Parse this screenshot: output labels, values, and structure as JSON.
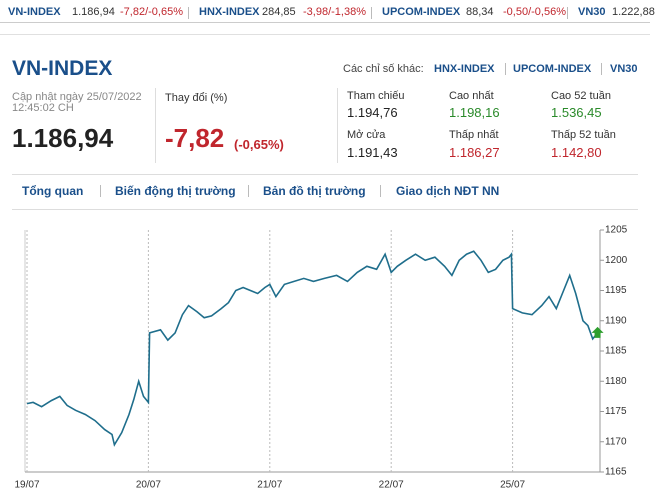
{
  "ticker": [
    {
      "name": "VN-INDEX",
      "price": "1.186,94",
      "change": "-7,82/-0,65%"
    },
    {
      "name": "HNX-INDEX",
      "price": "284,85",
      "change": "-3,98/-1,38%"
    },
    {
      "name": "UPCOM-INDEX",
      "price": "88,34",
      "change": "-0,50/-0,56%"
    },
    {
      "name": "VN30",
      "price": "1.222,88"
    }
  ],
  "header": {
    "title": "VN-INDEX",
    "other_label": "Các chỉ số khác:",
    "other_links": [
      "HNX-INDEX",
      "UPCOM-INDEX",
      "VN30"
    ],
    "updated": "Cập nhật ngày 25/07/2022",
    "time": "12:45:02 CH",
    "price": "1.186,94",
    "change_label": "Thay đổi (%)",
    "change": "-7,82",
    "change_pct": "(-0,65%)"
  },
  "stats": [
    {
      "label": "Tham chiếu",
      "value": "1.194,76"
    },
    {
      "label": "Cao nhất",
      "value": "1.198,16"
    },
    {
      "label": "Cao 52 tuần",
      "value": "1.536,45"
    },
    {
      "label": "Mở cửa",
      "value": "1.191,43"
    },
    {
      "label": "Thấp nhất",
      "value": "1.186,27"
    },
    {
      "label": "Thấp 52 tuần",
      "value": "1.142,80"
    }
  ],
  "tabs": [
    "Tổng quan",
    "Biến động thị trường",
    "Bản đồ thị trường",
    "Giao dịch NĐT NN"
  ],
  "chart": {
    "type": "line",
    "color": "#1f6e8c",
    "x": [
      0,
      0.05,
      0.12,
      0.2,
      0.27,
      0.33,
      0.4,
      0.48,
      0.56,
      0.64,
      0.7,
      0.72,
      0.78,
      0.84,
      0.88,
      0.92,
      0.96,
      1.0,
      1.01,
      1.1,
      1.16,
      1.22,
      1.28,
      1.33,
      1.4,
      1.46,
      1.52,
      1.6,
      1.66,
      1.72,
      1.78,
      1.84,
      1.9,
      1.96,
      2.0,
      2.05,
      2.12,
      2.2,
      2.28,
      2.36,
      2.45,
      2.55,
      2.64,
      2.72,
      2.8,
      2.88,
      2.95,
      3.0,
      3.05,
      3.12,
      3.2,
      3.28,
      3.36,
      3.44,
      3.5,
      3.56,
      3.62,
      3.68,
      3.74,
      3.8,
      3.86,
      3.92,
      3.97,
      3.99,
      4.0,
      4.08,
      4.16,
      4.24,
      4.3,
      4.36,
      4.42,
      4.47,
      4.52,
      4.58,
      4.62,
      4.66,
      4.7
    ],
    "values": [
      1176.3,
      1176.5,
      1175.8,
      1176.8,
      1177.5,
      1176,
      1175.2,
      1174.5,
      1173.5,
      1172,
      1171.2,
      1169.5,
      1171.5,
      1174.5,
      1177,
      1180,
      1177.5,
      1176.5,
      1188,
      1188.5,
      1186.8,
      1188,
      1191,
      1192.5,
      1191.5,
      1190.5,
      1190.8,
      1192,
      1193,
      1195,
      1195.5,
      1195,
      1194.5,
      1195.5,
      1196,
      1194,
      1196,
      1196.5,
      1197,
      1196.5,
      1197,
      1197.5,
      1196.5,
      1198,
      1199,
      1198.5,
      1201,
      1198,
      1199,
      1200,
      1201,
      1200,
      1200.5,
      1199,
      1197.5,
      1200,
      1201,
      1201.5,
      1200,
      1198,
      1198.5,
      1200,
      1200.5,
      1201,
      1192,
      1191.3,
      1191,
      1192.5,
      1194,
      1192,
      1195,
      1197.5,
      1194.5,
      1190,
      1189.2,
      1187,
      1188
    ],
    "xlim": [
      0,
      4.72
    ],
    "ylim": [
      1165,
      1205
    ],
    "xticks": [
      {
        "value": 0,
        "label": "19/07"
      },
      {
        "value": 1,
        "label": "20/07"
      },
      {
        "value": 2,
        "label": "21/07"
      },
      {
        "value": 3,
        "label": "22/07"
      },
      {
        "value": 4,
        "label": "25/07"
      }
    ],
    "yticks": [
      1165,
      1170,
      1175,
      1180,
      1185,
      1190,
      1195,
      1200,
      1205
    ]
  }
}
